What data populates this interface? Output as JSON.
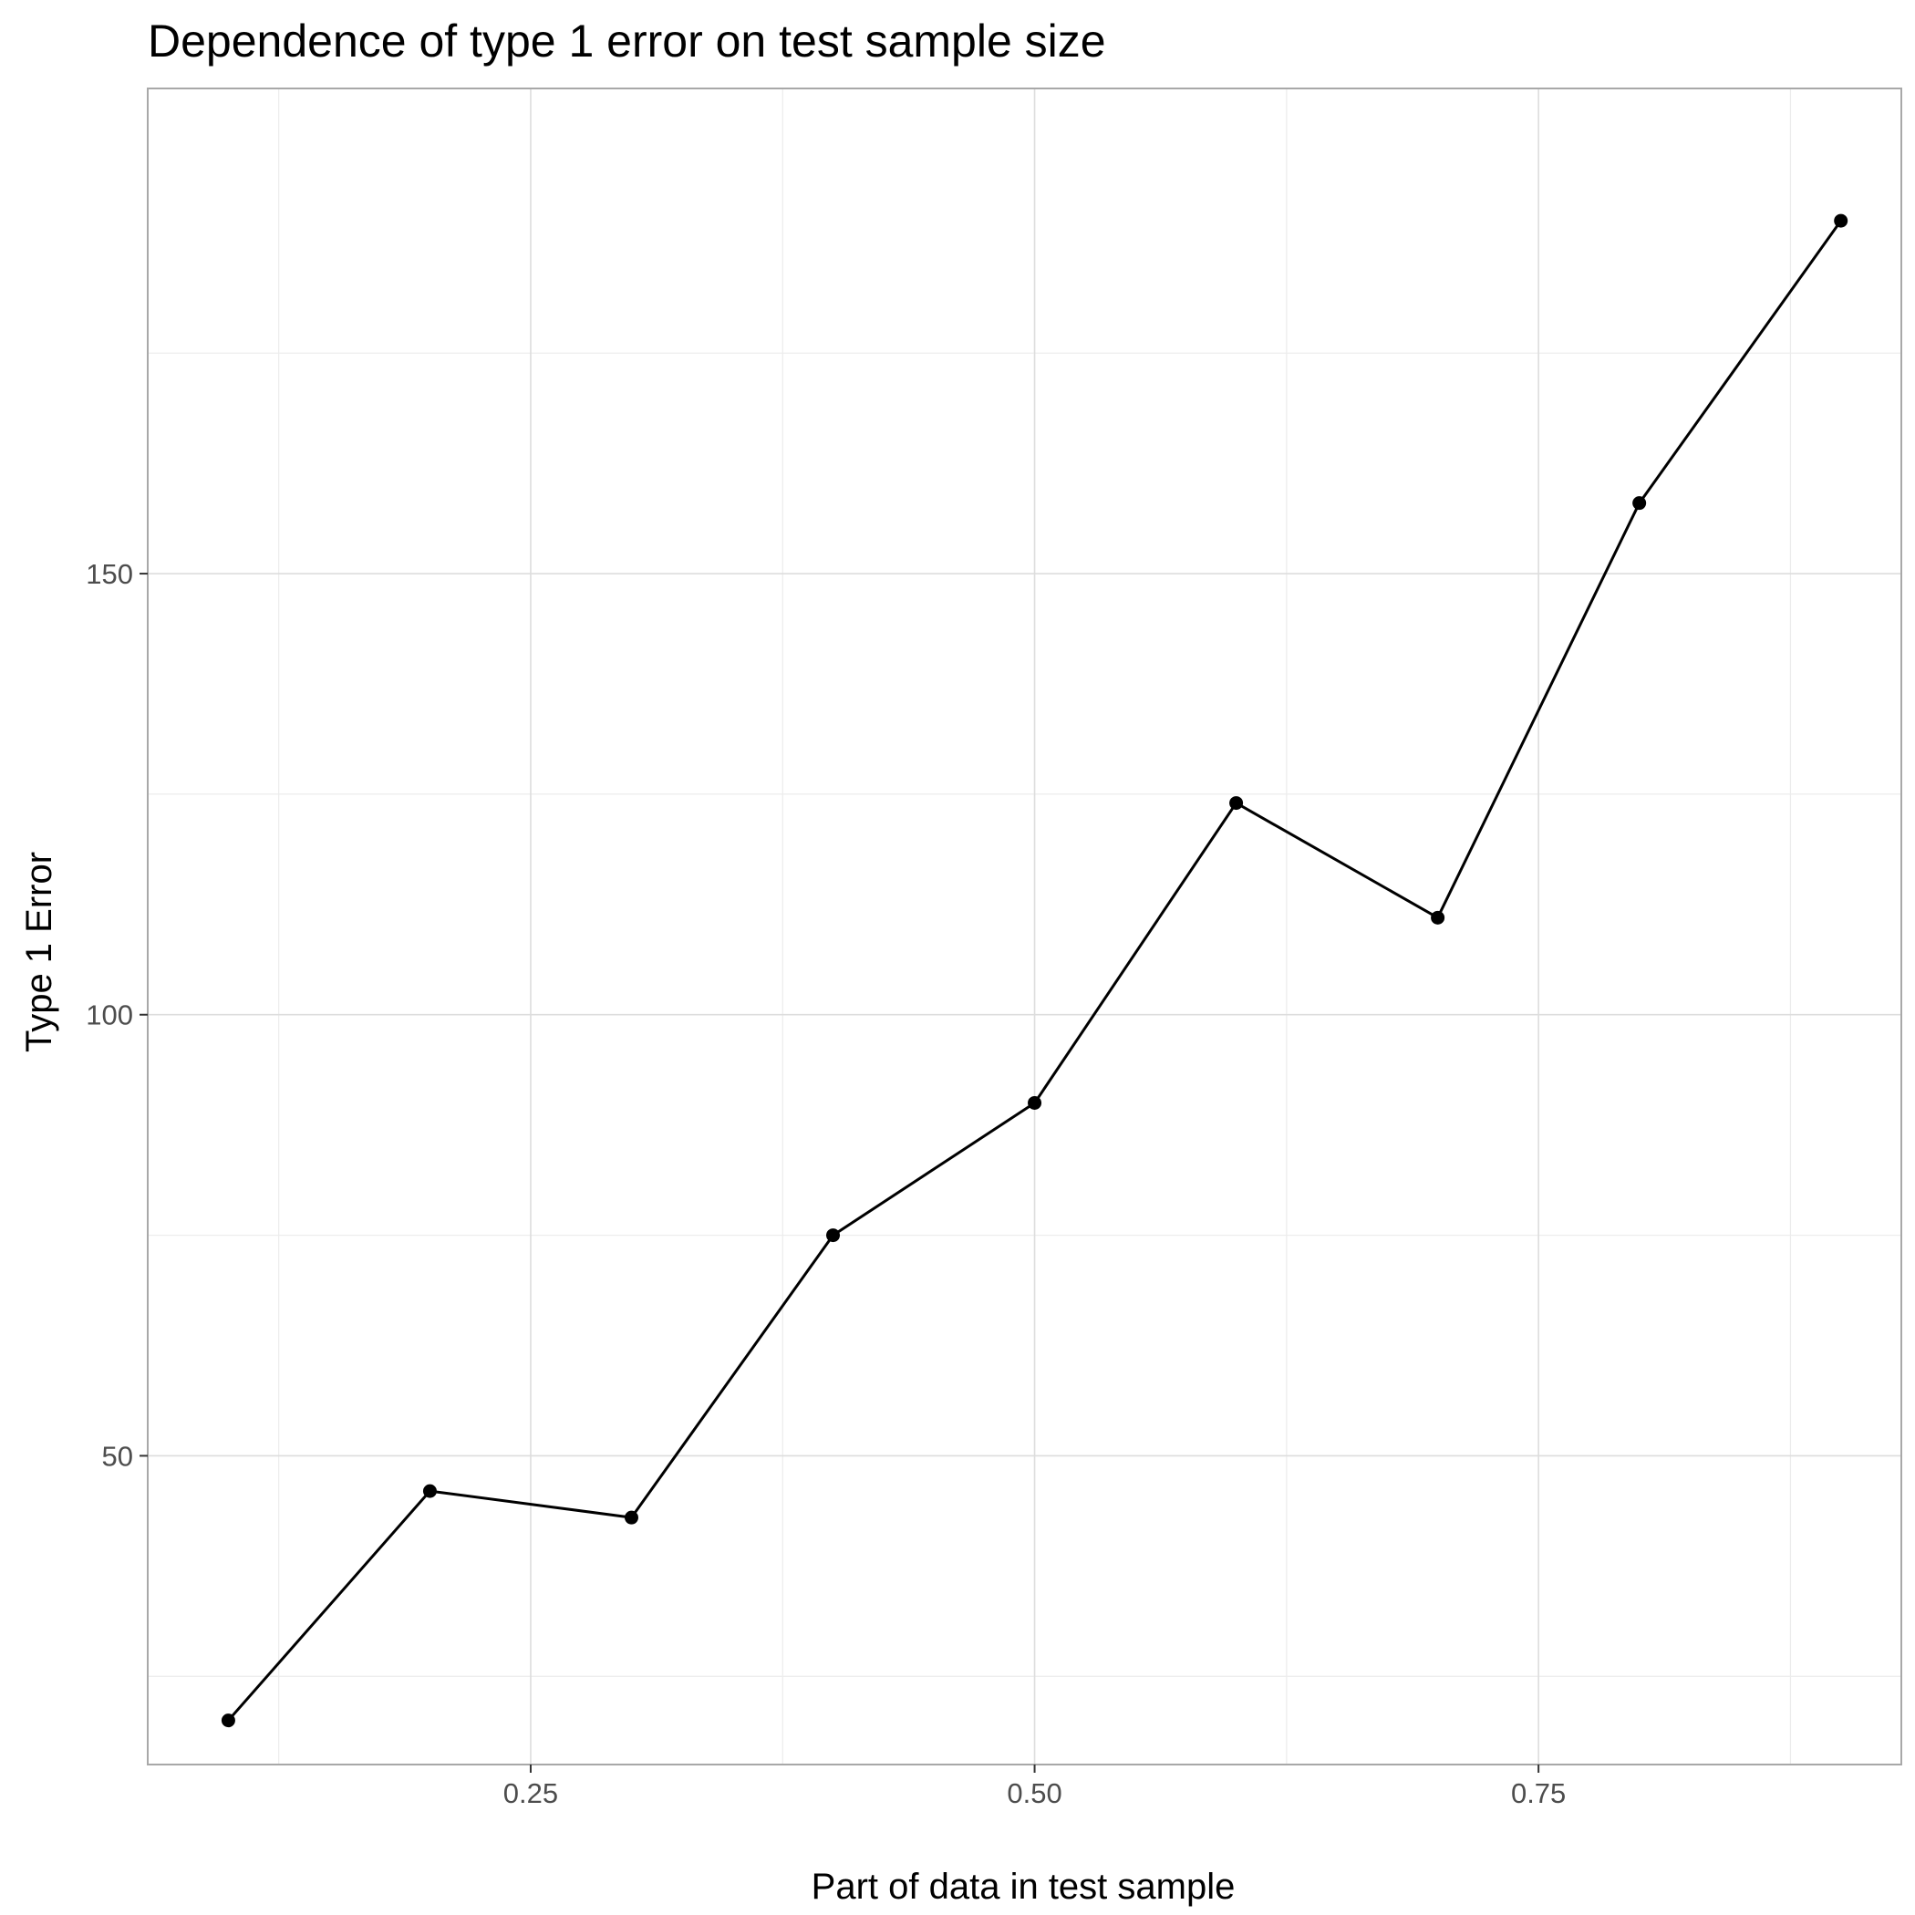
{
  "chart_data": {
    "type": "line",
    "title": "Dependence of type 1 error on test sample size",
    "xlabel": "Part of data in test sample",
    "ylabel": "Type 1 Error",
    "xlim": [
      0.06,
      0.93
    ],
    "ylim": [
      15,
      205
    ],
    "x_major_ticks": [
      0.25,
      0.5,
      0.75
    ],
    "x_minor_ticks": [
      0.125,
      0.375,
      0.625,
      0.875
    ],
    "x_tick_labels": [
      "0.25",
      "0.50",
      "0.75"
    ],
    "y_major_ticks": [
      50,
      100,
      150
    ],
    "y_minor_ticks": [
      25,
      75,
      125,
      175
    ],
    "y_tick_labels": [
      "50",
      "100",
      "150"
    ],
    "grid": true,
    "legend": "none",
    "series": [
      {
        "x": [
          0.1,
          0.2,
          0.3,
          0.4,
          0.5,
          0.6,
          0.7,
          0.8,
          0.9
        ],
        "y": [
          20,
          46,
          43,
          75,
          90,
          124,
          111,
          158,
          190
        ]
      }
    ],
    "colors": {
      "line": "#000000",
      "point": "#000000",
      "grid": "#dddddd",
      "border": "#a8a8a8"
    }
  }
}
